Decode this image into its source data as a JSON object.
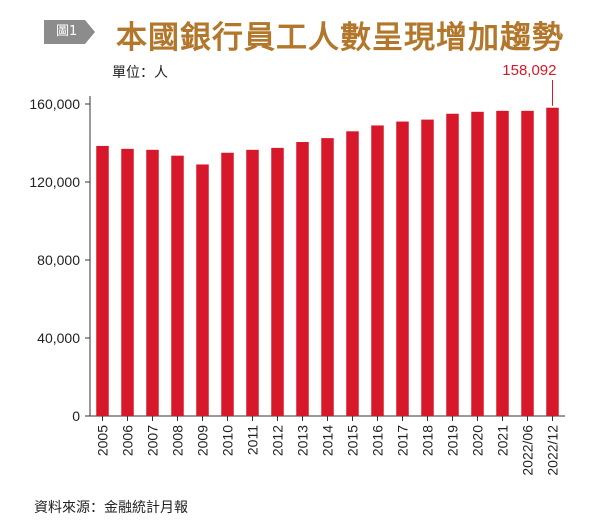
{
  "figure": {
    "badge": "圖1",
    "title": "本國銀行員工人數呈現增加趨勢",
    "unit": "單位：人",
    "source": "資料來源：金融統計月報"
  },
  "colors": {
    "bar": "#d7182a",
    "title": "#b2772b",
    "badge": "#8c8c8c"
  },
  "chart_data": {
    "type": "bar",
    "title": "本國銀行員工人數呈現增加趨勢",
    "ylabel": "單位：人",
    "ylim": [
      0,
      160000
    ],
    "yticks": [
      "0",
      "40,000",
      "80,000",
      "120,000",
      "160,000"
    ],
    "categories": [
      "2005",
      "2006",
      "2007",
      "2008",
      "2009",
      "2010",
      "2011",
      "2012",
      "2013",
      "2014",
      "2015",
      "2016",
      "2017",
      "2018",
      "2019",
      "2020",
      "2021",
      "2022/06",
      "2022/12"
    ],
    "values": [
      138500,
      137000,
      136500,
      133500,
      129000,
      135000,
      136500,
      137500,
      140500,
      142500,
      146000,
      149000,
      151000,
      152000,
      155000,
      156000,
      156500,
      156500,
      158092
    ],
    "annotation": {
      "category": "2022/12",
      "text": "158,092"
    },
    "grid": false
  }
}
